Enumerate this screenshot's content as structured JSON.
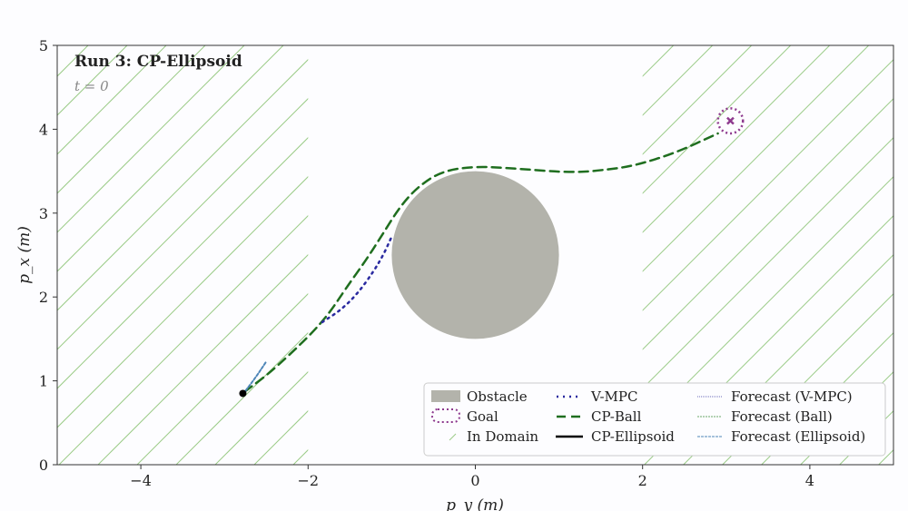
{
  "chart_data": {
    "type": "line",
    "title": "Run 3: CP-Ellipsoid",
    "subtitle": "t = 0",
    "xlabel": "p_y (m)",
    "ylabel": "p_x (m)",
    "xlim": [
      -5,
      5
    ],
    "ylim": [
      0,
      5
    ],
    "xticks": [
      -4,
      -2,
      0,
      2,
      4
    ],
    "yticks": [
      0,
      1,
      2,
      3,
      4,
      5
    ],
    "grid": false,
    "legend_position": "bottom-right",
    "domain_regions": [
      [
        -5,
        -2
      ],
      [
        2,
        5
      ]
    ],
    "obstacle": {
      "center": [
        0,
        2.5
      ],
      "radius": 1.0
    },
    "goal": {
      "center": [
        3.05,
        4.1
      ],
      "radius": 0.15
    },
    "start": [
      -2.78,
      0.85
    ],
    "series": [
      {
        "name": "CP-Ball",
        "x": [
          -2.76,
          -2.45,
          -2.0,
          -1.75,
          -1.55,
          -1.3,
          -1.12,
          -0.9,
          -0.68,
          -0.4,
          0,
          0.5,
          1.16,
          1.6,
          1.92,
          2.4,
          2.9
        ],
        "y": [
          0.87,
          1.1,
          1.52,
          1.8,
          2.1,
          2.45,
          2.73,
          3.08,
          3.32,
          3.5,
          3.56,
          3.53,
          3.48,
          3.52,
          3.57,
          3.72,
          3.95
        ]
      },
      {
        "name": "V-MPC",
        "x": [
          -1.83,
          -1.6,
          -1.4,
          -1.22,
          -1.1,
          -1.0
        ],
        "y": [
          1.7,
          1.85,
          2.05,
          2.3,
          2.5,
          2.72
        ]
      },
      {
        "name": "Forecast (Ellipsoid)",
        "x": [
          -2.78,
          -2.62,
          -2.5
        ],
        "y": [
          0.84,
          1.05,
          1.23
        ]
      }
    ],
    "legend": [
      "Obstacle",
      "Goal",
      "In Domain",
      "V-MPC",
      "CP-Ball",
      "CP-Ellipsoid",
      "Forecast (V-MPC)",
      "Forecast (Ball)",
      "Forecast (Ellipsoid)"
    ],
    "colors": {
      "obstacle": "#b3b3ab",
      "goal": "#8e3a8e",
      "domain": "#9acb87",
      "vmpc": "#2a2aa0",
      "ball": "#1f6e1f",
      "ellipsoid": "#000000",
      "forecast_ellipsoid": "#4f86b8"
    }
  }
}
